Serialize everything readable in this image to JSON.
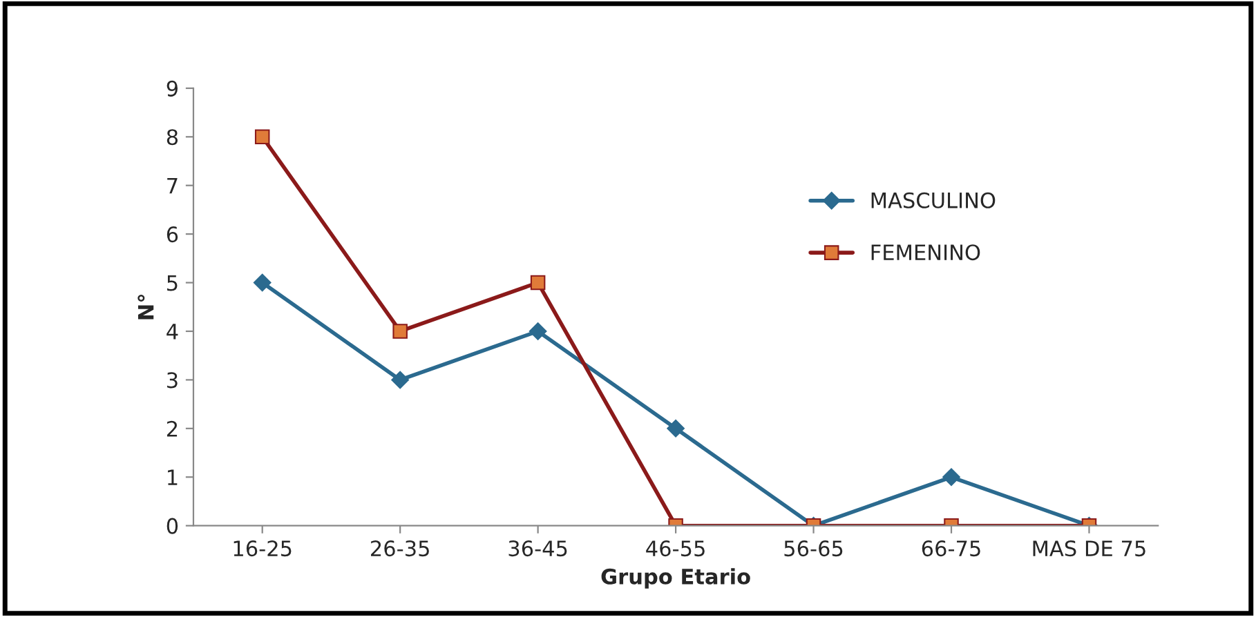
{
  "chart_data": {
    "type": "line",
    "xlabel": "Grupo Etario",
    "ylabel": "N°",
    "categories": [
      "16-25",
      "26-35",
      "36-45",
      "46-55",
      "56-65",
      "66-75",
      "MAS DE 75"
    ],
    "series": [
      {
        "name": "MASCULINO",
        "color": "#2b6a8f",
        "marker": "diamond",
        "values": [
          5,
          3,
          4,
          2,
          0,
          1,
          0
        ]
      },
      {
        "name": "FEMENINO",
        "color": "#8b1a1a",
        "marker": "square",
        "values": [
          8,
          4,
          5,
          0,
          0,
          0,
          0
        ]
      }
    ],
    "ylim": [
      0,
      9
    ],
    "yticks": [
      0,
      1,
      2,
      3,
      4,
      5,
      6,
      7,
      8,
      9
    ],
    "grid": false,
    "legend": "right",
    "line_style": "solid"
  }
}
